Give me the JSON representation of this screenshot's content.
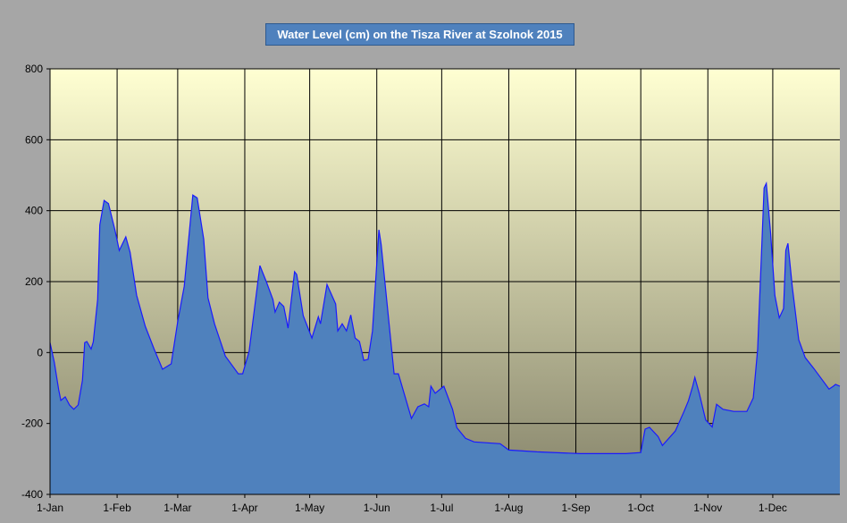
{
  "chart_data": {
    "type": "area",
    "title": "Water Level (cm) on the Tisza River at Szolnok 2015",
    "xlabel": "",
    "ylabel": "",
    "ylim": [
      -400,
      800
    ],
    "yticks": [
      -400,
      -200,
      0,
      200,
      400,
      600,
      800
    ],
    "xlim_days": [
      0,
      365
    ],
    "month_ticks": [
      {
        "label": "1-Jan",
        "day": 0
      },
      {
        "label": "1-Feb",
        "day": 31
      },
      {
        "label": "1-Mar",
        "day": 59
      },
      {
        "label": "1-Apr",
        "day": 90
      },
      {
        "label": "1-May",
        "day": 120
      },
      {
        "label": "1-Jun",
        "day": 151
      },
      {
        "label": "1-Jul",
        "day": 181
      },
      {
        "label": "1-Aug",
        "day": 212
      },
      {
        "label": "1-Sep",
        "day": 243
      },
      {
        "label": "1-Oct",
        "day": 273
      },
      {
        "label": "1-Nov",
        "day": 304
      },
      {
        "label": "1-Dec",
        "day": 334
      }
    ],
    "grid": true,
    "colors": {
      "fill": "#4f81bd",
      "line": "#1a1aff",
      "grid": "#000000"
    },
    "series": [
      {
        "name": "Water Level (cm)",
        "points": [
          [
            0,
            28
          ],
          [
            2,
            -28
          ],
          [
            4,
            -105
          ],
          [
            5,
            -135
          ],
          [
            7,
            -125
          ],
          [
            9,
            -148
          ],
          [
            11,
            -160
          ],
          [
            13,
            -148
          ],
          [
            15,
            -78
          ],
          [
            16,
            28
          ],
          [
            17,
            31
          ],
          [
            19,
            10
          ],
          [
            20,
            30
          ],
          [
            22,
            150
          ],
          [
            23,
            360
          ],
          [
            25,
            429
          ],
          [
            27,
            420
          ],
          [
            30,
            345
          ],
          [
            32,
            288
          ],
          [
            35,
            326
          ],
          [
            37,
            283
          ],
          [
            40,
            162
          ],
          [
            44,
            74
          ],
          [
            48,
            11
          ],
          [
            52,
            -47
          ],
          [
            56,
            -32
          ],
          [
            59,
            87
          ],
          [
            62,
            187
          ],
          [
            66,
            444
          ],
          [
            68,
            436
          ],
          [
            71,
            320
          ],
          [
            73,
            154
          ],
          [
            76,
            81
          ],
          [
            81,
            -10
          ],
          [
            87,
            -60
          ],
          [
            89,
            -60
          ],
          [
            92,
            3
          ],
          [
            97,
            245
          ],
          [
            100,
            199
          ],
          [
            103,
            149
          ],
          [
            104,
            114
          ],
          [
            106,
            142
          ],
          [
            108,
            130
          ],
          [
            110,
            69
          ],
          [
            113,
            228
          ],
          [
            114,
            220
          ],
          [
            117,
            104
          ],
          [
            121,
            41
          ],
          [
            124,
            101
          ],
          [
            125,
            81
          ],
          [
            128,
            192
          ],
          [
            132,
            137
          ],
          [
            133,
            61
          ],
          [
            135,
            81
          ],
          [
            137,
            61
          ],
          [
            139,
            106
          ],
          [
            141,
            41
          ],
          [
            143,
            31
          ],
          [
            145,
            -22
          ],
          [
            147,
            -19
          ],
          [
            149,
            61
          ],
          [
            152,
            346
          ],
          [
            153,
            305
          ],
          [
            159,
            -60
          ],
          [
            161,
            -60
          ],
          [
            167,
            -186
          ],
          [
            170,
            -153
          ],
          [
            173,
            -145
          ],
          [
            175,
            -153
          ],
          [
            176,
            -95
          ],
          [
            178,
            -115
          ],
          [
            182,
            -95
          ],
          [
            186,
            -160
          ],
          [
            188,
            -212
          ],
          [
            192,
            -242
          ],
          [
            196,
            -252
          ],
          [
            208,
            -257
          ],
          [
            212,
            -275
          ],
          [
            225,
            -280
          ],
          [
            245,
            -285
          ],
          [
            266,
            -285
          ],
          [
            273,
            -282
          ],
          [
            275,
            -216
          ],
          [
            277,
            -211
          ],
          [
            281,
            -237
          ],
          [
            283,
            -262
          ],
          [
            289,
            -221
          ],
          [
            293,
            -166
          ],
          [
            295,
            -136
          ],
          [
            297,
            -95
          ],
          [
            298,
            -70
          ],
          [
            300,
            -115
          ],
          [
            303,
            -190
          ],
          [
            306,
            -210
          ],
          [
            308,
            -146
          ],
          [
            311,
            -160
          ],
          [
            316,
            -166
          ],
          [
            322,
            -166
          ],
          [
            325,
            -128
          ],
          [
            327,
            10
          ],
          [
            330,
            464
          ],
          [
            331,
            477
          ],
          [
            333,
            337
          ],
          [
            335,
            161
          ],
          [
            337,
            98
          ],
          [
            339,
            124
          ],
          [
            340,
            288
          ],
          [
            341,
            308
          ],
          [
            343,
            187
          ],
          [
            346,
            36
          ],
          [
            349,
            -14
          ],
          [
            353,
            -45
          ],
          [
            357,
            -78
          ],
          [
            360,
            -103
          ],
          [
            362,
            -95
          ],
          [
            363,
            -90
          ],
          [
            365,
            -95
          ]
        ]
      }
    ]
  }
}
